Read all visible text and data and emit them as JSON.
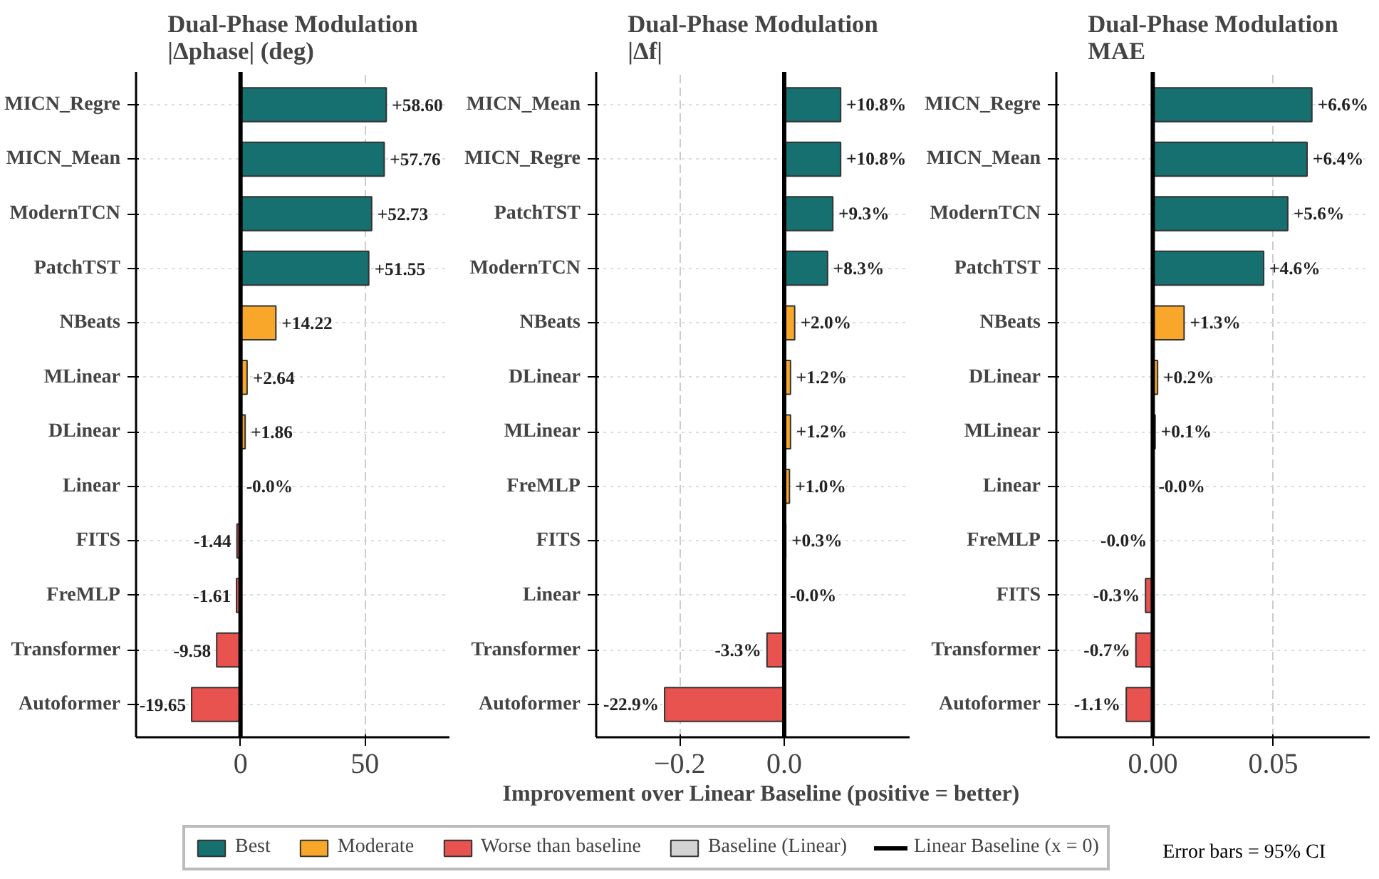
{
  "chart_data": [
    {
      "type": "bar",
      "orientation": "horizontal",
      "title": "Dual-Phase Modulation\n|Δphase| (deg)",
      "categories": [
        "MICN_Regre",
        "MICN_Mean",
        "ModernTCN",
        "PatchTST",
        "NBeats",
        "MLinear",
        "DLinear",
        "Linear",
        "FITS",
        "FreMLP",
        "Transformer",
        "Autoformer"
      ],
      "xlim": [
        -42,
        84
      ],
      "xticks": [
        0,
        50
      ],
      "grid": true,
      "ref_lines": [
        {
          "axis": "x",
          "value": 0,
          "color": "#000000"
        }
      ],
      "series": [
        {
          "color": "#167070",
          "values": [
            58.6,
            57.76,
            52.73,
            51.55,
            null,
            null,
            null,
            null,
            null,
            null,
            null,
            null
          ],
          "value_labels": [
            "+58.60",
            "+57.76",
            "+52.73",
            "+51.55",
            null,
            null,
            null,
            null,
            null,
            null,
            null,
            null
          ]
        },
        {
          "color": "#f9a72b",
          "values": [
            null,
            null,
            null,
            null,
            14.22,
            2.64,
            1.86,
            null,
            null,
            null,
            null,
            null
          ],
          "value_labels": [
            null,
            null,
            null,
            null,
            "+14.22",
            "+2.64",
            "+1.86",
            null,
            null,
            null,
            null,
            null
          ]
        },
        {
          "color": "#e8524f",
          "values": [
            null,
            null,
            null,
            null,
            null,
            null,
            null,
            null,
            -1.44,
            -1.61,
            -9.58,
            -19.65
          ],
          "value_labels": [
            null,
            null,
            null,
            null,
            null,
            null,
            null,
            null,
            "-1.44",
            "-1.61",
            "-9.58",
            "-19.65"
          ]
        },
        {
          "color": "#d3d3d3",
          "values": [
            null,
            null,
            null,
            null,
            null,
            null,
            null,
            0,
            null,
            null,
            null,
            null
          ],
          "value_labels": [
            null,
            null,
            null,
            null,
            null,
            null,
            null,
            "-0.0%",
            null,
            null,
            null,
            null
          ]
        }
      ]
    },
    {
      "type": "bar",
      "orientation": "horizontal",
      "title": "Dual-Phase Modulation\n|Δf|",
      "xlabel": "Improvement over Linear Baseline (positive = better)",
      "categories": [
        "MICN_Mean",
        "MICN_Regre",
        "PatchTST",
        "ModernTCN",
        "NBeats",
        "DLinear",
        "MLinear",
        "FreMLP",
        "FITS",
        "Linear",
        "Transformer",
        "Autoformer"
      ],
      "xlim": [
        -0.36,
        0.24
      ],
      "xticks": [
        {
          "value": -0.2,
          "label": "−0.2"
        },
        {
          "value": 0,
          "label": "0.0"
        }
      ],
      "grid": true,
      "legend": "bottom",
      "annotations": [
        "Error bars = 95% CI"
      ],
      "ref_lines": [
        {
          "axis": "x",
          "value": 0,
          "label": "Linear Baseline (x = 0)",
          "color": "#000000"
        }
      ],
      "series": [
        {
          "name": "Best",
          "color": "#167070",
          "values": [
            0.108,
            0.108,
            0.093,
            0.083,
            null,
            null,
            null,
            null,
            null,
            null,
            null,
            null
          ],
          "value_labels": [
            "+10.8%",
            "+10.8%",
            "+9.3%",
            "+8.3%",
            null,
            null,
            null,
            null,
            null,
            null,
            null,
            null
          ]
        },
        {
          "name": "Moderate",
          "color": "#f9a72b",
          "values": [
            null,
            null,
            null,
            null,
            0.02,
            0.012,
            0.012,
            0.01,
            0.003,
            null,
            null,
            null
          ],
          "value_labels": [
            null,
            null,
            null,
            null,
            "+2.0%",
            "+1.2%",
            "+1.2%",
            "+1.0%",
            "+0.3%",
            null,
            null,
            null
          ]
        },
        {
          "name": "Worse than baseline",
          "color": "#e8524f",
          "values": [
            null,
            null,
            null,
            null,
            null,
            null,
            null,
            null,
            null,
            null,
            -0.033,
            -0.229
          ],
          "value_labels": [
            null,
            null,
            null,
            null,
            null,
            null,
            null,
            null,
            null,
            null,
            "-3.3%",
            "-22.9%"
          ]
        },
        {
          "name": "Baseline (Linear)",
          "color": "#d3d3d3",
          "values": [
            null,
            null,
            null,
            null,
            null,
            null,
            null,
            null,
            null,
            0,
            null,
            null
          ],
          "value_labels": [
            null,
            null,
            null,
            null,
            null,
            null,
            null,
            null,
            null,
            "-0.0%",
            null,
            null
          ]
        }
      ]
    },
    {
      "type": "bar",
      "orientation": "horizontal",
      "title": "Dual-Phase Modulation\nMAE",
      "categories": [
        "MICN_Regre",
        "MICN_Mean",
        "ModernTCN",
        "PatchTST",
        "NBeats",
        "DLinear",
        "MLinear",
        "Linear",
        "FreMLP",
        "FITS",
        "Transformer",
        "Autoformer"
      ],
      "xlim": [
        -0.04,
        0.09
      ],
      "xticks": [
        {
          "value": 0,
          "label": "0.00"
        },
        {
          "value": 0.05,
          "label": "0.05"
        }
      ],
      "grid": true,
      "ref_lines": [
        {
          "axis": "x",
          "value": 0,
          "color": "#000000"
        }
      ],
      "series": [
        {
          "color": "#167070",
          "values": [
            0.066,
            0.064,
            0.056,
            0.046,
            null,
            null,
            null,
            null,
            null,
            null,
            null,
            null
          ],
          "value_labels": [
            "+6.6%",
            "+6.4%",
            "+5.6%",
            "+4.6%",
            null,
            null,
            null,
            null,
            null,
            null,
            null,
            null
          ]
        },
        {
          "color": "#f9a72b",
          "values": [
            null,
            null,
            null,
            null,
            0.013,
            0.002,
            0.001,
            null,
            null,
            null,
            null,
            null
          ],
          "value_labels": [
            null,
            null,
            null,
            null,
            "+1.3%",
            "+0.2%",
            "+0.1%",
            null,
            null,
            null,
            null,
            null
          ]
        },
        {
          "color": "#e8524f",
          "values": [
            null,
            null,
            null,
            null,
            null,
            null,
            null,
            null,
            -0.0,
            -0.003,
            -0.007,
            -0.011
          ],
          "value_labels": [
            null,
            null,
            null,
            null,
            null,
            null,
            null,
            null,
            "-0.0%",
            "-0.3%",
            "-0.7%",
            "-1.1%"
          ]
        },
        {
          "color": "#d3d3d3",
          "values": [
            null,
            null,
            null,
            null,
            null,
            null,
            null,
            0,
            null,
            null,
            null,
            null
          ],
          "value_labels": [
            null,
            null,
            null,
            null,
            null,
            null,
            null,
            "-0.0%",
            null,
            null,
            null,
            null
          ]
        }
      ]
    }
  ]
}
